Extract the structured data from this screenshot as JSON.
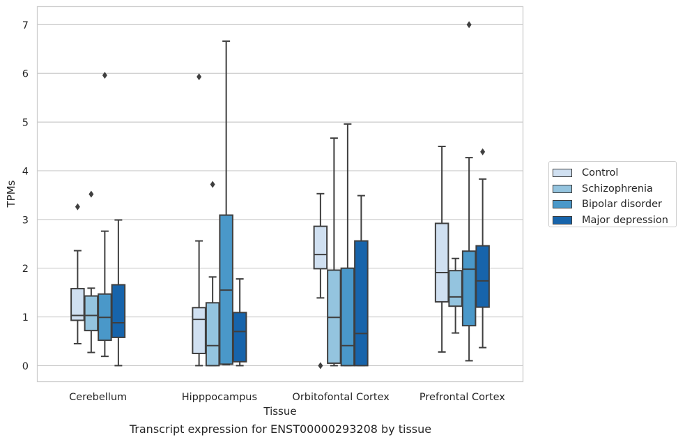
{
  "chart_data": {
    "type": "box",
    "xlabel": "Tissue",
    "ylabel": "TPMs",
    "caption": "Transcript expression for ENST00000293208 by tissue",
    "ylim": [
      -0.33,
      7.37
    ],
    "yticks": [
      0,
      1,
      2,
      3,
      4,
      5,
      6,
      7
    ],
    "grid": true,
    "legend_position": "right",
    "categories": [
      "Cerebellum",
      "Hipppocampus",
      "Orbitofontal Cortex",
      "Prefrontal Cortex"
    ],
    "series": [
      {
        "name": "Control",
        "color": "#d0e0f1",
        "boxes": [
          {
            "whislo": 0.45,
            "q1": 0.93,
            "med": 1.03,
            "q3": 1.58,
            "whishi": 2.36,
            "fliers": [
              3.26
            ]
          },
          {
            "whislo": 0.0,
            "q1": 0.25,
            "med": 0.95,
            "q3": 1.19,
            "whishi": 2.56,
            "fliers": [
              5.93
            ]
          },
          {
            "whislo": 1.39,
            "q1": 1.99,
            "med": 2.28,
            "q3": 2.86,
            "whishi": 3.53,
            "fliers": [
              0.0
            ]
          },
          {
            "whislo": 0.28,
            "q1": 1.31,
            "med": 1.91,
            "q3": 2.92,
            "whishi": 4.5,
            "fliers": []
          }
        ]
      },
      {
        "name": "Schizophrenia",
        "color": "#94c4df",
        "boxes": [
          {
            "whislo": 0.27,
            "q1": 0.72,
            "med": 1.03,
            "q3": 1.43,
            "whishi": 1.59,
            "fliers": [
              3.52
            ]
          },
          {
            "whislo": 0.0,
            "q1": 0.0,
            "med": 0.41,
            "q3": 1.29,
            "whishi": 1.82,
            "fliers": [
              3.72
            ]
          },
          {
            "whislo": 0.0,
            "q1": 0.05,
            "med": 0.99,
            "q3": 1.96,
            "whishi": 4.67,
            "fliers": []
          },
          {
            "whislo": 0.67,
            "q1": 1.22,
            "med": 1.41,
            "q3": 1.95,
            "whishi": 2.2,
            "fliers": []
          }
        ]
      },
      {
        "name": "Bipolar disorder",
        "color": "#4a98c9",
        "boxes": [
          {
            "whislo": 0.19,
            "q1": 0.52,
            "med": 0.99,
            "q3": 1.47,
            "whishi": 2.76,
            "fliers": [
              5.96
            ]
          },
          {
            "whislo": 0.02,
            "q1": 0.03,
            "med": 1.55,
            "q3": 3.09,
            "whishi": 6.66,
            "fliers": []
          },
          {
            "whislo": 0.0,
            "q1": 0.0,
            "med": 0.41,
            "q3": 2.0,
            "whishi": 4.96,
            "fliers": []
          },
          {
            "whislo": 0.1,
            "q1": 0.82,
            "med": 1.98,
            "q3": 2.35,
            "whishi": 4.27,
            "fliers": [
              7.0
            ]
          }
        ]
      },
      {
        "name": "Major depression",
        "color": "#1764ab",
        "boxes": [
          {
            "whislo": 0.0,
            "q1": 0.58,
            "med": 0.88,
            "q3": 1.66,
            "whishi": 2.99,
            "fliers": []
          },
          {
            "whislo": 0.0,
            "q1": 0.08,
            "med": 0.7,
            "q3": 1.09,
            "whishi": 1.78,
            "fliers": []
          },
          {
            "whislo": 0.0,
            "q1": 0.0,
            "med": 0.66,
            "q3": 2.56,
            "whishi": 3.49,
            "fliers": []
          },
          {
            "whislo": 0.37,
            "q1": 1.2,
            "med": 1.74,
            "q3": 2.46,
            "whishi": 3.83,
            "fliers": [
              4.39
            ]
          }
        ]
      }
    ]
  }
}
